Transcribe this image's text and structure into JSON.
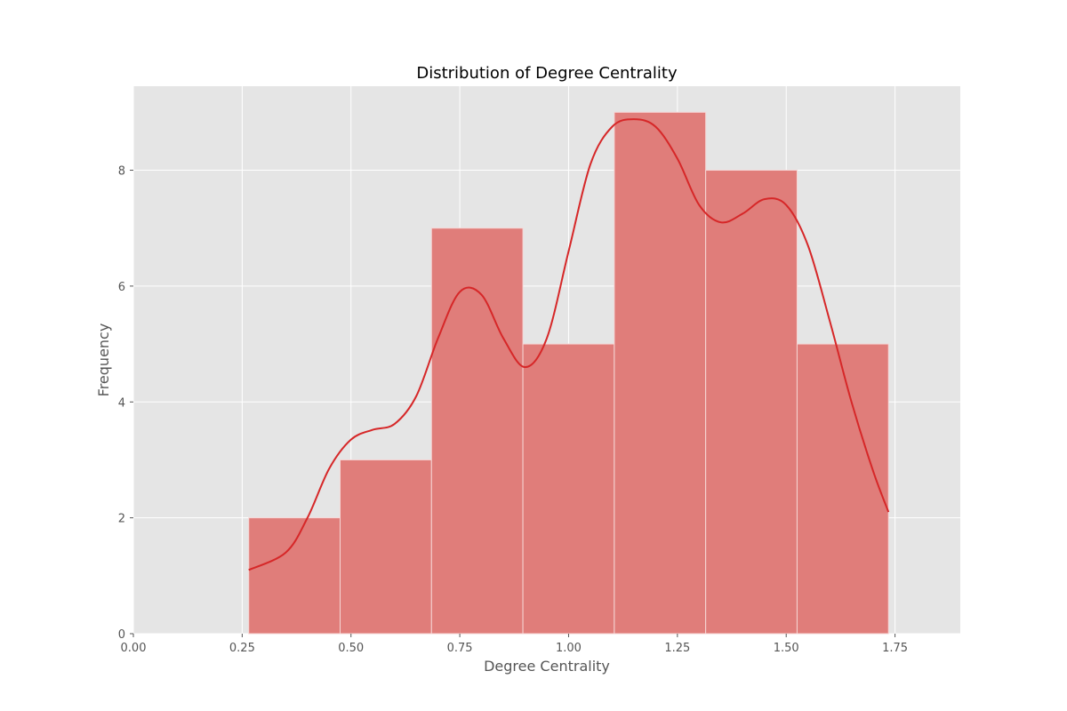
{
  "chart_data": {
    "type": "bar",
    "subtype": "histogram-with-kde",
    "title": "Distribution of Degree Centrality",
    "xlabel": "Degree Centrality",
    "ylabel": "Frequency",
    "xlim": [
      0.0,
      1.9
    ],
    "ylim": [
      0,
      9.45
    ],
    "xticks": [
      "0.00",
      "0.25",
      "0.50",
      "0.75",
      "1.00",
      "1.25",
      "1.50",
      "1.75"
    ],
    "yticks": [
      "0",
      "2",
      "4",
      "6",
      "8"
    ],
    "grid": true,
    "legend": "none",
    "bins": [
      {
        "x0": 0.265,
        "x1": 0.475,
        "count": 2
      },
      {
        "x0": 0.475,
        "x1": 0.685,
        "count": 3
      },
      {
        "x0": 0.685,
        "x1": 0.895,
        "count": 7
      },
      {
        "x0": 0.895,
        "x1": 1.105,
        "count": 5
      },
      {
        "x0": 1.105,
        "x1": 1.315,
        "count": 9
      },
      {
        "x0": 1.315,
        "x1": 1.525,
        "count": 8
      },
      {
        "x0": 1.525,
        "x1": 1.735,
        "count": 5
      }
    ],
    "kde": {
      "x": [
        0.265,
        0.35,
        0.4,
        0.45,
        0.5,
        0.55,
        0.6,
        0.65,
        0.7,
        0.75,
        0.8,
        0.85,
        0.9,
        0.95,
        1.0,
        1.05,
        1.1,
        1.15,
        1.2,
        1.25,
        1.3,
        1.35,
        1.4,
        1.45,
        1.5,
        1.55,
        1.6,
        1.65,
        1.7,
        1.735
      ],
      "y": [
        1.1,
        1.4,
        2.0,
        2.85,
        3.35,
        3.52,
        3.62,
        4.1,
        5.1,
        5.9,
        5.85,
        5.1,
        4.6,
        5.1,
        6.6,
        8.1,
        8.75,
        8.88,
        8.75,
        8.2,
        7.4,
        7.1,
        7.25,
        7.5,
        7.4,
        6.7,
        5.4,
        4.0,
        2.8,
        2.1
      ]
    },
    "colors": {
      "bar_fill": "#e07d7a",
      "bar_edge": "#f6d6d5",
      "kde_line": "#d62728",
      "plot_bg": "#e5e5e5",
      "grid": "#ffffff"
    }
  }
}
